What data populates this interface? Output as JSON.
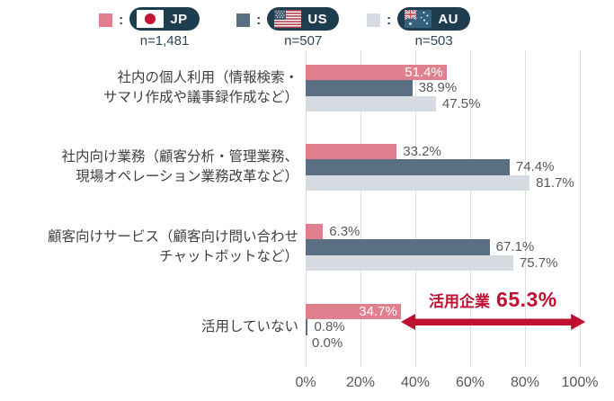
{
  "legend": {
    "separator": ":",
    "items": [
      {
        "code": "JP",
        "n_label": "n=1,481"
      },
      {
        "code": "US",
        "n_label": "n=507"
      },
      {
        "code": "AU",
        "n_label": "n=503"
      }
    ]
  },
  "chart_data": {
    "type": "bar",
    "orientation": "horizontal",
    "title": "",
    "xlabel": "",
    "ylabel": "",
    "xlim": [
      0,
      100
    ],
    "x_ticks": [
      "0%",
      "20%",
      "40%",
      "60%",
      "80%",
      "100%"
    ],
    "grid": "vertical gridlines every 20%",
    "legend_position": "top",
    "categories": [
      "社内の個人利用（情報検索・\nサマリ作成や議事録作成など）",
      "社内向け業務（顧客分析・管理業務、\n現場オペレーション業務改革など）",
      "顧客向けサービス（顧客向け問い合わせ\nチャットボットなど）",
      "活用していない"
    ],
    "series": [
      {
        "name": "JP",
        "color": "#E0808E",
        "values": [
          51.4,
          33.2,
          6.3,
          34.7
        ],
        "labels": [
          "51.4%",
          "33.2%",
          "6.3%",
          "34.7%"
        ],
        "label_inside": [
          true,
          false,
          false,
          true
        ]
      },
      {
        "name": "US",
        "color": "#5A7082",
        "values": [
          38.9,
          74.4,
          67.1,
          0.8
        ],
        "labels": [
          "38.9%",
          "74.4%",
          "67.1%",
          "0.8%"
        ],
        "label_inside": [
          false,
          false,
          false,
          false
        ]
      },
      {
        "name": "AU",
        "color": "#D6DBE1",
        "values": [
          47.5,
          81.7,
          75.7,
          0.0
        ],
        "labels": [
          "47.5%",
          "81.7%",
          "75.7%",
          "0.0%"
        ],
        "label_inside": [
          false,
          false,
          false,
          false
        ]
      }
    ],
    "annotation": {
      "label": "活用企業",
      "value": "65.3%",
      "color": "#C01031",
      "arrow_from": 34.7,
      "arrow_to": 100
    }
  },
  "colors": {
    "pill_bg": "#1E3D4F",
    "value_label": "#595959",
    "value_label_inside": "#FFFFFF",
    "category_label": "#3F3F3F",
    "axis_label": "#595959",
    "gridline": "#DDDDDD",
    "n_label": "#2E4656"
  }
}
